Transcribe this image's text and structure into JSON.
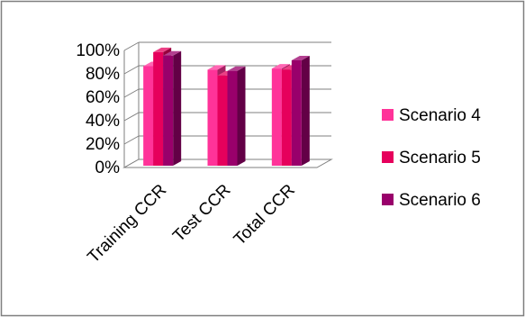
{
  "chart_data": {
    "type": "bar",
    "style": "3d-clustered-column",
    "categories": [
      "Training CCR",
      "Test CCR",
      "Total CCR"
    ],
    "series": [
      {
        "name": "Scenario 4",
        "values": [
          85,
          82,
          83
        ],
        "color": "#FF3399"
      },
      {
        "name": "Scenario 5",
        "values": [
          97,
          77,
          82
        ],
        "color": "#E6005C"
      },
      {
        "name": "Scenario 6",
        "values": [
          94,
          81,
          90
        ],
        "color": "#99006B"
      }
    ],
    "yticks": [
      "0%",
      "20%",
      "40%",
      "60%",
      "80%",
      "100%"
    ],
    "ylim": [
      0,
      100
    ],
    "grid": true,
    "legend": "right",
    "title": "",
    "xlabel": "",
    "ylabel": ""
  }
}
